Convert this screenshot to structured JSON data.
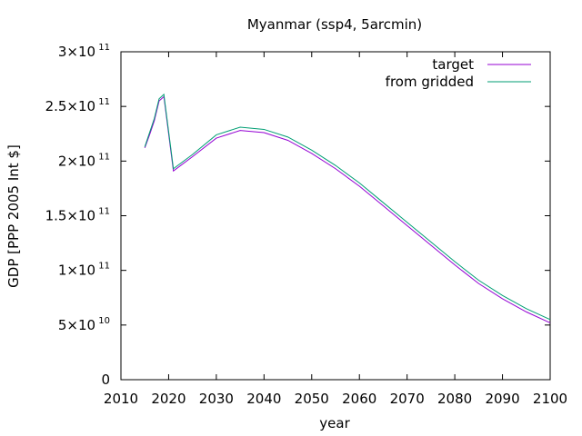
{
  "chart_data": {
    "type": "line",
    "title": "Myanmar (ssp4, 5arcmin)",
    "xlabel": "year",
    "ylabel": "GDP [PPP 2005 Int $]",
    "xlim": [
      2010,
      2100
    ],
    "ylim": [
      0,
      300000000000
    ],
    "grid": false,
    "legend_position": "top-right",
    "x_ticks": [
      {
        "value": 2010,
        "label": "2010"
      },
      {
        "value": 2020,
        "label": "2020"
      },
      {
        "value": 2030,
        "label": "2030"
      },
      {
        "value": 2040,
        "label": "2040"
      },
      {
        "value": 2050,
        "label": "2050"
      },
      {
        "value": 2060,
        "label": "2060"
      },
      {
        "value": 2070,
        "label": "2070"
      },
      {
        "value": 2080,
        "label": "2080"
      },
      {
        "value": 2090,
        "label": "2090"
      },
      {
        "value": 2100,
        "label": "2100"
      }
    ],
    "y_ticks": [
      {
        "value": 0,
        "mantissa": "0",
        "exponent": ""
      },
      {
        "value": 50000000000,
        "mantissa": "5x10",
        "exponent": "10"
      },
      {
        "value": 100000000000,
        "mantissa": "1x10",
        "exponent": "11"
      },
      {
        "value": 150000000000,
        "mantissa": "1.5x10",
        "exponent": "11"
      },
      {
        "value": 200000000000,
        "mantissa": "2x10",
        "exponent": "11"
      },
      {
        "value": 250000000000,
        "mantissa": "2.5x10",
        "exponent": "11"
      },
      {
        "value": 300000000000,
        "mantissa": "3x10",
        "exponent": "11"
      }
    ],
    "x": [
      2015,
      2016,
      2017,
      2018,
      2019,
      2020,
      2021,
      2025,
      2030,
      2035,
      2040,
      2045,
      2050,
      2055,
      2060,
      2065,
      2070,
      2075,
      2080,
      2085,
      2090,
      2095,
      2100
    ],
    "series": [
      {
        "name": "target",
        "color": "#9400d3",
        "values": [
          212000000000,
          224000000000,
          237000000000,
          255000000000,
          259000000000,
          225000000000,
          191000000000,
          204000000000,
          221000000000,
          228000000000,
          226000000000,
          219000000000,
          207000000000,
          193000000000,
          177000000000,
          159000000000,
          141000000000,
          123000000000,
          105000000000,
          88000000000,
          74000000000,
          62000000000,
          52000000000
        ]
      },
      {
        "name": "from gridded",
        "color": "#009e73",
        "values": [
          213000000000,
          226000000000,
          239000000000,
          257000000000,
          261000000000,
          227000000000,
          193000000000,
          206000000000,
          224000000000,
          231000000000,
          229000000000,
          222000000000,
          210000000000,
          196000000000,
          180000000000,
          162000000000,
          144000000000,
          126000000000,
          108000000000,
          91000000000,
          77000000000,
          65000000000,
          55000000000
        ]
      }
    ]
  }
}
